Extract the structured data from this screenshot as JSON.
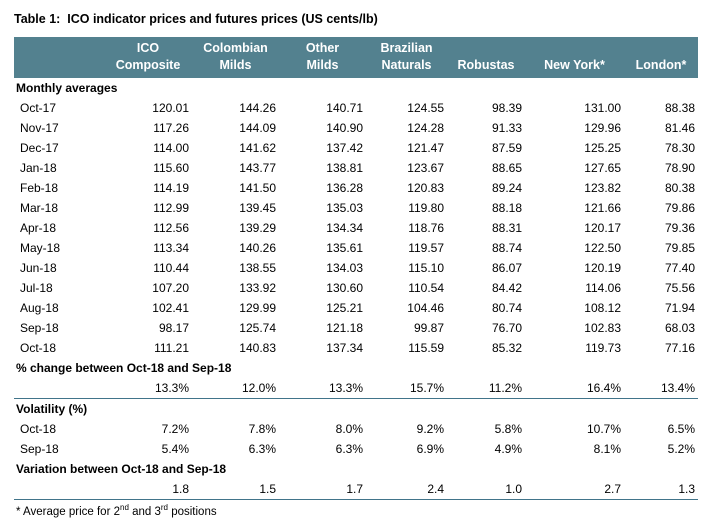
{
  "title": "Table 1:  ICO indicator prices and futures prices (US cents/lb)",
  "colors": {
    "header_bg": "#53818f",
    "header_text": "#ffffff",
    "divider": "#41748a",
    "text": "#000000"
  },
  "table": {
    "header_top": [
      "",
      "ICO",
      "Colombian",
      "Other",
      "Brazilian",
      "",
      "",
      ""
    ],
    "header_bottom": [
      "",
      "Composite",
      "Milds",
      "Milds",
      "Naturals",
      "Robustas",
      "New York*",
      "London*"
    ],
    "sections": [
      {
        "heading": "Monthly averages",
        "rows": [
          {
            "label": "Oct-17",
            "values": [
              "120.01",
              "144.26",
              "140.71",
              "124.55",
              "98.39",
              "131.00",
              "88.38"
            ]
          },
          {
            "label": "Nov-17",
            "values": [
              "117.26",
              "144.09",
              "140.90",
              "124.28",
              "91.33",
              "129.96",
              "81.46"
            ]
          },
          {
            "label": "Dec-17",
            "values": [
              "114.00",
              "141.62",
              "137.42",
              "121.47",
              "87.59",
              "125.25",
              "78.30"
            ]
          },
          {
            "label": "Jan-18",
            "values": [
              "115.60",
              "143.77",
              "138.81",
              "123.67",
              "88.65",
              "127.65",
              "78.90"
            ]
          },
          {
            "label": "Feb-18",
            "values": [
              "114.19",
              "141.50",
              "136.28",
              "120.83",
              "89.24",
              "123.82",
              "80.38"
            ]
          },
          {
            "label": "Mar-18",
            "values": [
              "112.99",
              "139.45",
              "135.03",
              "119.80",
              "88.18",
              "121.66",
              "79.86"
            ]
          },
          {
            "label": "Apr-18",
            "values": [
              "112.56",
              "139.29",
              "134.34",
              "118.76",
              "88.31",
              "120.17",
              "79.36"
            ]
          },
          {
            "label": "May-18",
            "values": [
              "113.34",
              "140.26",
              "135.61",
              "119.57",
              "88.74",
              "122.50",
              "79.85"
            ]
          },
          {
            "label": "Jun-18",
            "values": [
              "110.44",
              "138.55",
              "134.03",
              "115.10",
              "86.07",
              "120.19",
              "77.40"
            ]
          },
          {
            "label": "Jul-18",
            "values": [
              "107.20",
              "133.92",
              "130.60",
              "110.54",
              "84.42",
              "114.06",
              "75.56"
            ]
          },
          {
            "label": "Aug-18",
            "values": [
              "102.41",
              "129.99",
              "125.21",
              "104.46",
              "80.74",
              "108.12",
              "71.94"
            ]
          },
          {
            "label": "Sep-18",
            "values": [
              "98.17",
              "125.74",
              "121.18",
              "99.87",
              "76.70",
              "102.83",
              "68.03"
            ]
          },
          {
            "label": "Oct-18",
            "values": [
              "111.21",
              "140.83",
              "137.34",
              "115.59",
              "85.32",
              "119.73",
              "77.16"
            ]
          }
        ]
      },
      {
        "heading": "% change between Oct-18 and Sep-18",
        "divider_after": true,
        "rows": [
          {
            "label": "",
            "values": [
              "13.3%",
              "12.0%",
              "13.3%",
              "15.7%",
              "11.2%",
              "16.4%",
              "13.4%"
            ]
          }
        ]
      },
      {
        "heading": "Volatility (%)",
        "rows": [
          {
            "label": "Oct-18",
            "values": [
              "7.2%",
              "7.8%",
              "8.0%",
              "9.2%",
              "5.8%",
              "10.7%",
              "6.5%"
            ]
          },
          {
            "label": "Sep-18",
            "values": [
              "5.4%",
              "6.3%",
              "6.3%",
              "6.9%",
              "4.9%",
              "8.1%",
              "5.2%"
            ]
          }
        ]
      },
      {
        "heading": "Variation between Oct-18 and Sep-18",
        "divider_after": true,
        "rows": [
          {
            "label": "",
            "values": [
              "1.8",
              "1.5",
              "1.7",
              "2.4",
              "1.0",
              "2.7",
              "1.3"
            ]
          }
        ]
      }
    ]
  },
  "footnote": {
    "prefix": "* Average price for 2",
    "sup1": "nd",
    "mid": " and 3",
    "sup2": "rd",
    "suffix": " positions"
  }
}
